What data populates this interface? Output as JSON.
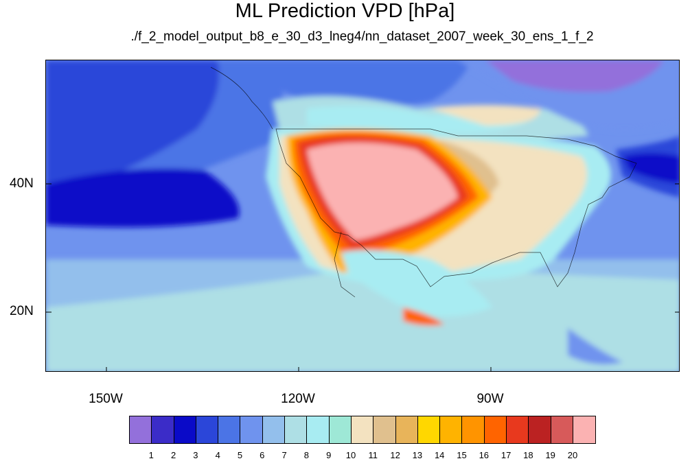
{
  "title": "ML Prediction VPD [hPa]",
  "subtitle": "./f_2_model_output_b8_e_30_d3_lneg4/nn_dataset_2007_week_30_ens_1_f_2",
  "map": {
    "lat_labels": [
      "40N",
      "20N"
    ],
    "lon_labels": [
      "150W",
      "120W",
      "90W"
    ]
  },
  "colorbar": {
    "colors": [
      "#9370db",
      "#3b2cc8",
      "#0a0ac8",
      "#2b46d9",
      "#4b74e6",
      "#6f93ee",
      "#93bfec",
      "#aedfe5",
      "#a8ecf2",
      "#9ee8d6",
      "#f3e2c0",
      "#e0c08e",
      "#e8b45a",
      "#ffd700",
      "#ffb300",
      "#ff9400",
      "#ff6400",
      "#e8391e",
      "#bb2222",
      "#d75a5a",
      "#fbb2b2"
    ],
    "labels": [
      "1",
      "2",
      "3",
      "4",
      "5",
      "6",
      "7",
      "8",
      "9",
      "10",
      "11",
      "12",
      "13",
      "14",
      "15",
      "16",
      "17",
      "18",
      "19",
      "20"
    ]
  }
}
